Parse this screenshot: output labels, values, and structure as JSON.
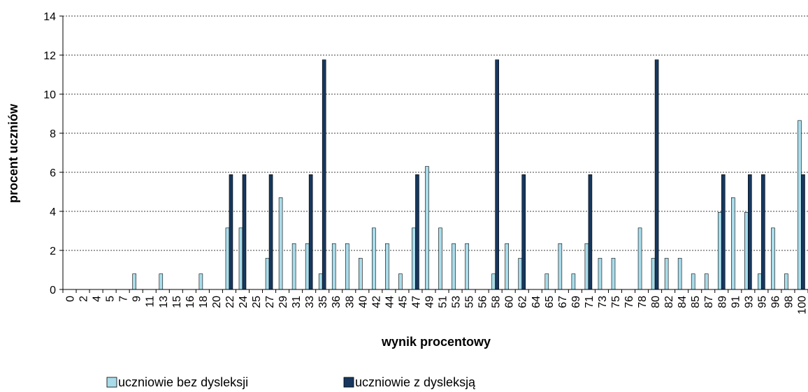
{
  "chart_data": {
    "type": "bar",
    "xlabel": "wynik procentowy",
    "ylabel": "procent uczniów",
    "ylim": [
      0,
      14
    ],
    "yticks": [
      0,
      2,
      4,
      6,
      8,
      10,
      12,
      14
    ],
    "grid": "horizontal-dashed",
    "legend_position": "bottom",
    "categories": [
      "0",
      "2",
      "4",
      "5",
      "7",
      "9",
      "11",
      "13",
      "15",
      "16",
      "18",
      "20",
      "22",
      "24",
      "25",
      "27",
      "29",
      "31",
      "33",
      "35",
      "36",
      "38",
      "40",
      "42",
      "44",
      "45",
      "47",
      "49",
      "51",
      "53",
      "55",
      "56",
      "58",
      "60",
      "62",
      "64",
      "65",
      "67",
      "69",
      "71",
      "73",
      "75",
      "76",
      "78",
      "80",
      "82",
      "84",
      "85",
      "87",
      "89",
      "91",
      "93",
      "95",
      "96",
      "98",
      "100"
    ],
    "series": [
      {
        "name": "uczniowie bez dysleksji",
        "color": "#a9dcea",
        "values": [
          0,
          0,
          0,
          0,
          0,
          0.8,
          0,
          0.8,
          0,
          0,
          0.8,
          0,
          3.15,
          3.15,
          0,
          1.6,
          4.7,
          2.35,
          2.35,
          0.8,
          2.35,
          2.35,
          1.6,
          3.15,
          2.35,
          0.8,
          3.15,
          6.3,
          3.15,
          2.35,
          2.35,
          0,
          0.8,
          2.35,
          1.6,
          0,
          0.8,
          2.35,
          0.8,
          2.35,
          1.6,
          1.6,
          0,
          3.15,
          1.6,
          1.6,
          1.6,
          0.8,
          0.8,
          3.95,
          4.7,
          3.95,
          0.8,
          3.15,
          0.8,
          8.65
        ]
      },
      {
        "name": "uczniowie z dysleksją",
        "color": "#17375e",
        "values": [
          0,
          0,
          0,
          0,
          0,
          0,
          0,
          0,
          0,
          0,
          0,
          0,
          5.88,
          5.88,
          0,
          5.88,
          0,
          0,
          5.88,
          11.76,
          0,
          0,
          0,
          0,
          0,
          0,
          5.88,
          0,
          0,
          0,
          0,
          0,
          11.76,
          0,
          5.88,
          0,
          0,
          0,
          0,
          5.88,
          0,
          0,
          0,
          0,
          11.76,
          0,
          0,
          0,
          0,
          5.88,
          0,
          5.88,
          5.88,
          0,
          0,
          5.88
        ]
      }
    ]
  }
}
